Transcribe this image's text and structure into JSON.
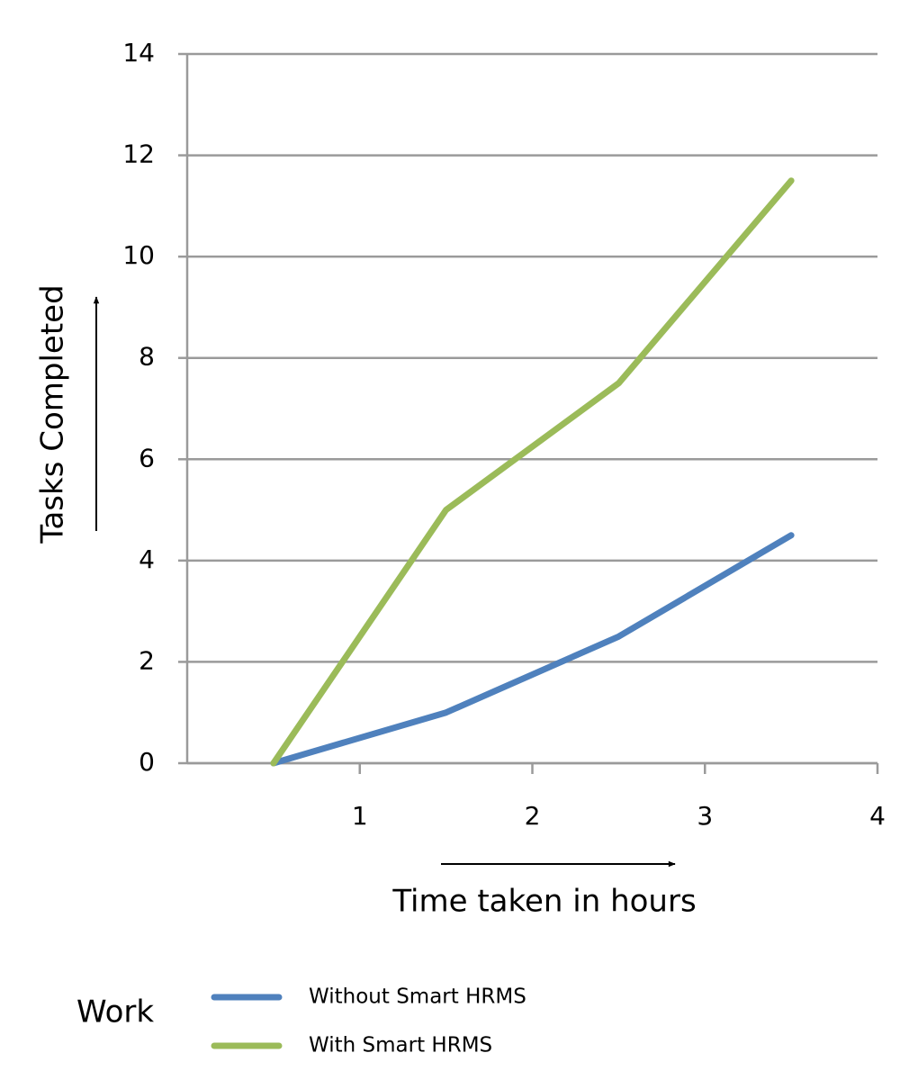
{
  "chart_data": {
    "type": "line",
    "y_label": "Tasks Completed",
    "x_label": "Time taken in hours",
    "legend_title": "Work",
    "x": [
      0.5,
      1.5,
      2.5,
      3.5
    ],
    "series": [
      {
        "name": "Without Smart HRMS",
        "color": "#4f81bd",
        "values": [
          0,
          1,
          2.5,
          4.5
        ]
      },
      {
        "name": "With Smart HRMS",
        "color": "#9bbb59",
        "values": [
          0,
          5,
          7.5,
          11.5
        ]
      }
    ],
    "xlim": [
      0,
      4
    ],
    "xticks": [
      1,
      2,
      3,
      4
    ],
    "ylim": [
      0,
      14
    ],
    "yticks": [
      0,
      2,
      4,
      6,
      8,
      10,
      12,
      14
    ],
    "grid": true
  }
}
